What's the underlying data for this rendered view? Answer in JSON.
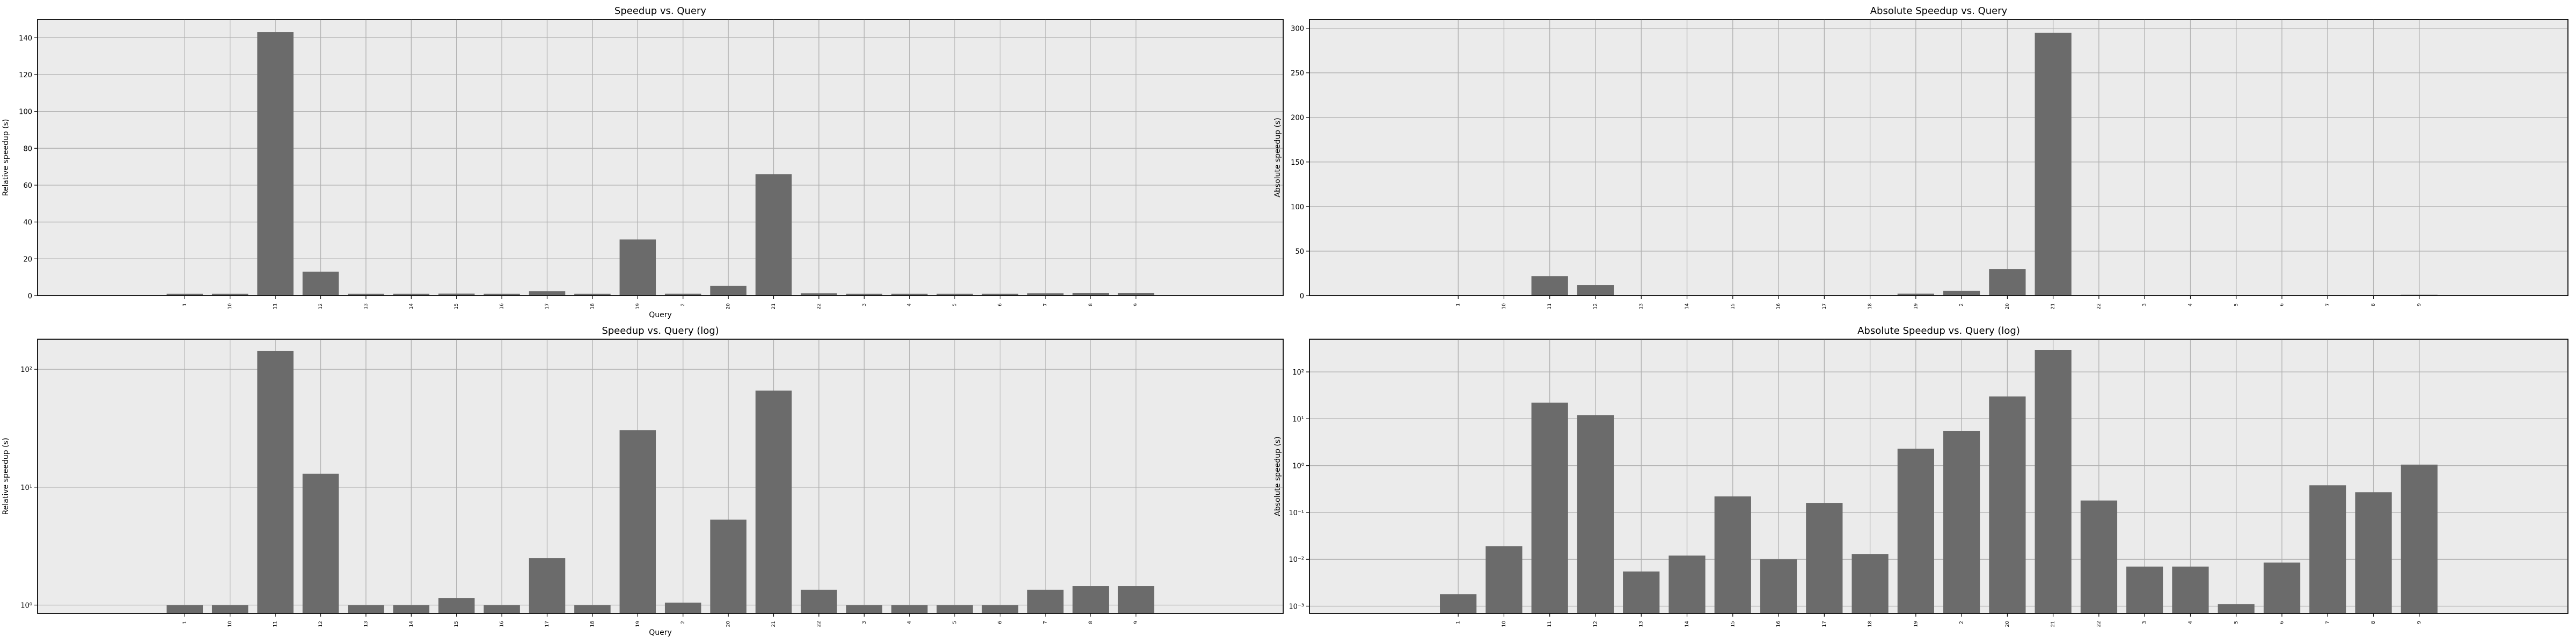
{
  "chart_data": [
    {
      "type": "bar",
      "title": "Speedup vs. Query",
      "xlabel": "Query",
      "ylabel": "Relative speedup (s)",
      "scale": "linear",
      "ylim": [
        0,
        150
      ],
      "yticks": [
        0,
        20,
        40,
        60,
        80,
        100,
        120,
        140
      ],
      "ytick_labels": [
        "0",
        "20",
        "40",
        "60",
        "80",
        "100",
        "120",
        "140"
      ],
      "grid": true,
      "bar_color": "#6b6b6b",
      "background_color": "#ebebeb",
      "categories": [
        "1",
        "10",
        "11",
        "12",
        "13",
        "14",
        "15",
        "16",
        "17",
        "18",
        "19",
        "2",
        "20",
        "21",
        "22",
        "3",
        "4",
        "5",
        "6",
        "7",
        "8",
        "9"
      ],
      "values": [
        1.0,
        1.0,
        143,
        13,
        1.0,
        1.0,
        1.15,
        1.0,
        2.5,
        1.0,
        30.5,
        1.05,
        5.3,
        66,
        1.35,
        1.0,
        1.0,
        1.0,
        1.0,
        1.35,
        1.45,
        1.45
      ]
    },
    {
      "type": "bar",
      "title": "Absolute Speedup vs. Query",
      "xlabel": "",
      "ylabel": "Absolute speedup (s)",
      "scale": "linear",
      "ylim": [
        0,
        310
      ],
      "yticks": [
        0,
        50,
        100,
        150,
        200,
        250,
        300
      ],
      "ytick_labels": [
        "0",
        "50",
        "100",
        "150",
        "200",
        "250",
        "300"
      ],
      "grid": true,
      "bar_color": "#6b6b6b",
      "background_color": "#ebebeb",
      "categories": [
        "1",
        "10",
        "11",
        "12",
        "13",
        "14",
        "15",
        "16",
        "17",
        "18",
        "19",
        "2",
        "20",
        "21",
        "22",
        "3",
        "4",
        "5",
        "6",
        "7",
        "8",
        "9"
      ],
      "values": [
        0.0018,
        0.019,
        22,
        12,
        0.0055,
        0.012,
        0.22,
        0.01,
        0.16,
        0.013,
        2.3,
        5.5,
        30,
        295,
        0.18,
        0.007,
        0.007,
        0.0011,
        0.0085,
        0.38,
        0.27,
        1.05
      ]
    },
    {
      "type": "bar",
      "title": "Speedup vs. Query (log)",
      "xlabel": "Query",
      "ylabel": "Relative speedup (s)",
      "scale": "log",
      "ylim": [
        0.85,
        180
      ],
      "yticks": [
        1,
        10,
        100
      ],
      "ytick_labels": [
        "10⁰",
        "10¹",
        "10²"
      ],
      "grid": true,
      "bar_color": "#6b6b6b",
      "background_color": "#ebebeb",
      "categories": [
        "1",
        "10",
        "11",
        "12",
        "13",
        "14",
        "15",
        "16",
        "17",
        "18",
        "19",
        "2",
        "20",
        "21",
        "22",
        "3",
        "4",
        "5",
        "6",
        "7",
        "8",
        "9"
      ],
      "values": [
        1.0,
        1.0,
        143,
        13,
        1.0,
        1.0,
        1.15,
        1.0,
        2.5,
        1.0,
        30.5,
        1.05,
        5.3,
        66,
        1.35,
        1.0,
        1.0,
        1.0,
        1.0,
        1.35,
        1.45,
        1.45
      ]
    },
    {
      "type": "bar",
      "title": "Absolute Speedup vs. Query (log)",
      "xlabel": "",
      "ylabel": "Absolute speedup (s)",
      "scale": "log",
      "ylim": [
        0.0007,
        500
      ],
      "yticks": [
        0.001,
        0.01,
        0.1,
        1,
        10,
        100
      ],
      "ytick_labels": [
        "10⁻³",
        "10⁻²",
        "10⁻¹",
        "10⁰",
        "10¹",
        "10²"
      ],
      "grid": true,
      "bar_color": "#6b6b6b",
      "background_color": "#ebebeb",
      "categories": [
        "1",
        "10",
        "11",
        "12",
        "13",
        "14",
        "15",
        "16",
        "17",
        "18",
        "19",
        "2",
        "20",
        "21",
        "22",
        "3",
        "4",
        "5",
        "6",
        "7",
        "8",
        "9"
      ],
      "values": [
        0.0018,
        0.019,
        22,
        12,
        0.0055,
        0.012,
        0.22,
        0.01,
        0.16,
        0.013,
        2.3,
        5.5,
        30,
        295,
        0.18,
        0.007,
        0.007,
        0.0011,
        0.0085,
        0.38,
        0.27,
        1.05
      ]
    }
  ]
}
